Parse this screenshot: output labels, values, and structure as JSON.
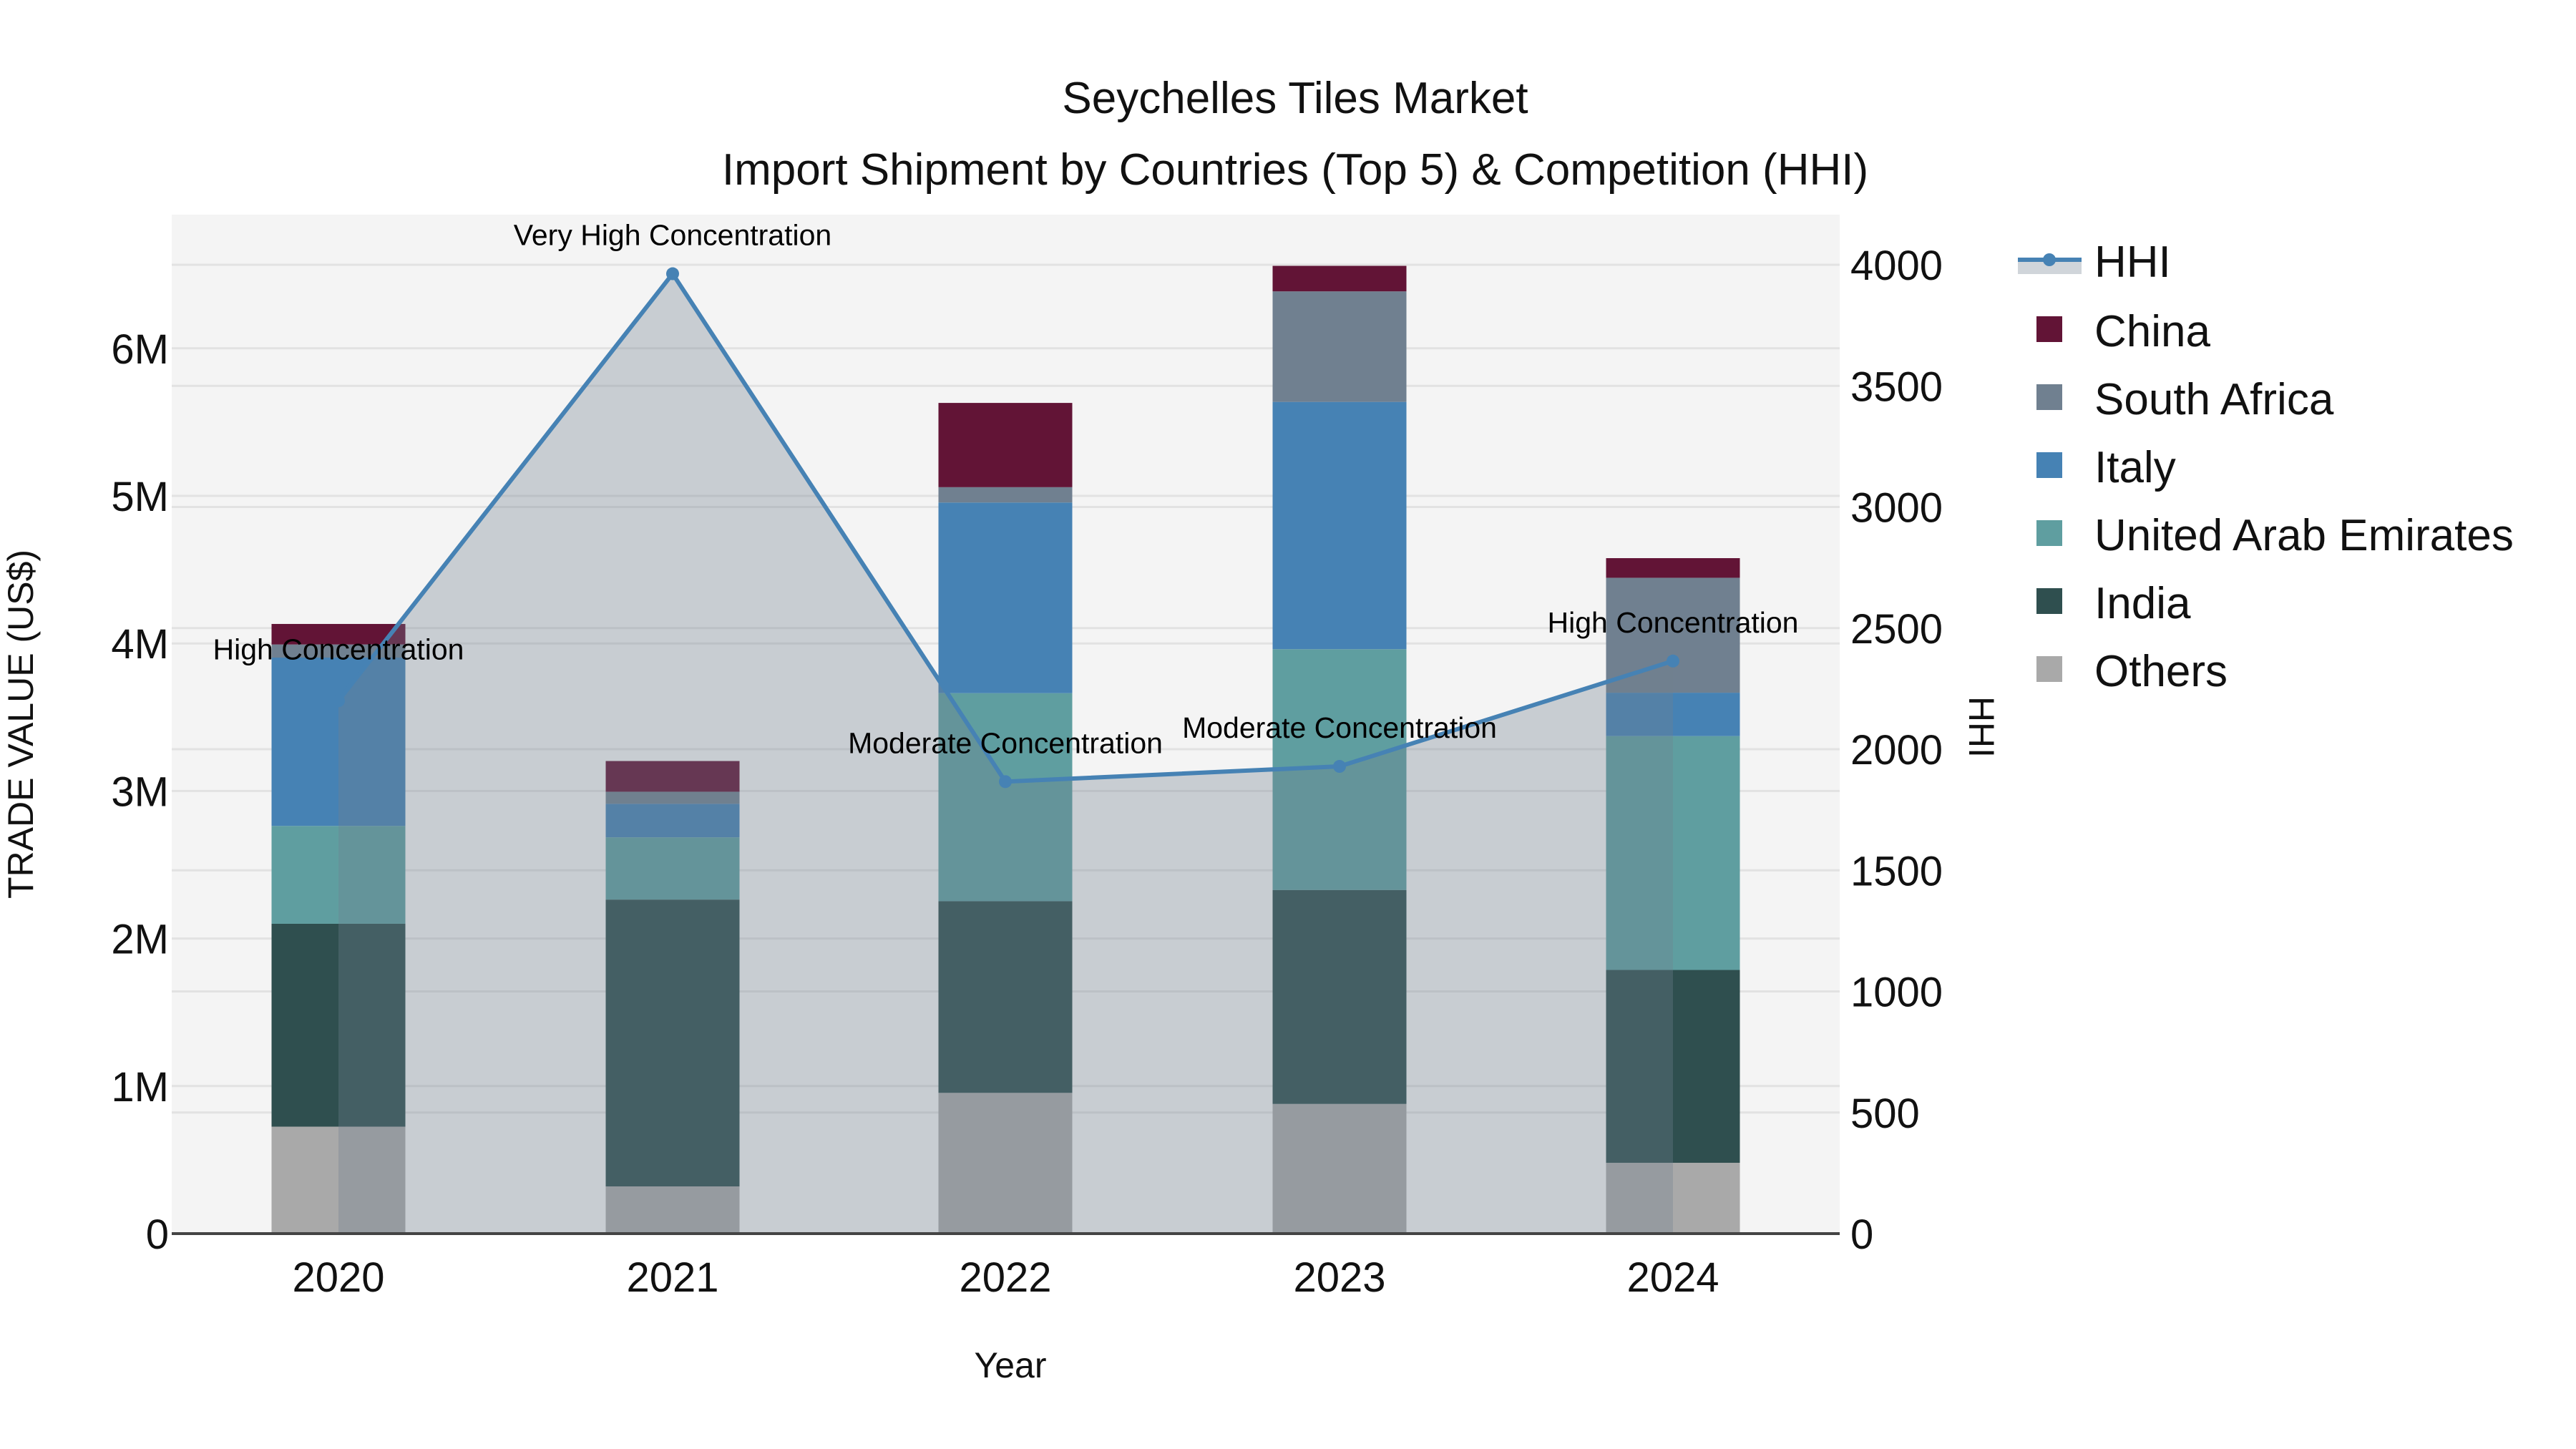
{
  "chart_data": {
    "type": "bar",
    "subtype": "stacked bar with line/area overlay (secondary axis)",
    "title": "Seychelles Tiles Market",
    "subtitle": "Import Shipment by Countries (Top 5) & Competition (HHI)",
    "xlabel": "Year",
    "ylabel": "TRADE VALUE (US$)",
    "y2label": "HHI",
    "categories": [
      "2020",
      "2021",
      "2022",
      "2023",
      "2024"
    ],
    "ylim": [
      0,
      6900000
    ],
    "y_ticks": [
      {
        "value": 0,
        "label": "0"
      },
      {
        "value": 1000000,
        "label": "1M"
      },
      {
        "value": 2000000,
        "label": "2M"
      },
      {
        "value": 3000000,
        "label": "3M"
      },
      {
        "value": 4000000,
        "label": "4M"
      },
      {
        "value": 5000000,
        "label": "5M"
      },
      {
        "value": 6000000,
        "label": "6M"
      }
    ],
    "y2lim": [
      0,
      4200
    ],
    "y2_ticks": [
      {
        "value": 0,
        "label": "0"
      },
      {
        "value": 500,
        "label": "500"
      },
      {
        "value": 1000,
        "label": "1000"
      },
      {
        "value": 1500,
        "label": "1500"
      },
      {
        "value": 2000,
        "label": "2000"
      },
      {
        "value": 2500,
        "label": "2500"
      },
      {
        "value": 3000,
        "label": "3000"
      },
      {
        "value": 3500,
        "label": "3500"
      },
      {
        "value": 4000,
        "label": "4000"
      }
    ],
    "grid": true,
    "legend_position": "right",
    "stack_order_bottom_to_top": [
      "Others",
      "India",
      "United Arab Emirates",
      "Italy",
      "South Africa",
      "China"
    ],
    "series": [
      {
        "name": "Others",
        "color": "#a9a9a9",
        "values": [
          725000,
          320000,
          954000,
          879000,
          480000
        ]
      },
      {
        "name": "India",
        "color": "#2f4f4f",
        "values": [
          1375000,
          1944000,
          1299000,
          1450000,
          1307000
        ]
      },
      {
        "name": "United Arab Emirates",
        "color": "#5f9ea0",
        "values": [
          663000,
          422000,
          1410000,
          1632000,
          1585000
        ]
      },
      {
        "name": "Italy",
        "color": "#4682b4",
        "values": [
          1141000,
          227000,
          1292000,
          1676000,
          294000
        ]
      },
      {
        "name": "South Africa",
        "color": "#708090",
        "values": [
          89000,
          82000,
          104000,
          749000,
          779000
        ]
      },
      {
        "name": "China",
        "color": "#621436",
        "values": [
          139000,
          208000,
          571000,
          173000,
          133000
        ]
      }
    ],
    "hhi": {
      "name": "HHI",
      "axis": "y2",
      "line_color": "#4682b4",
      "fill_color": "#708090",
      "fill_opacity": 0.33,
      "values": [
        2200,
        3963,
        1866,
        1929,
        2364
      ],
      "annotations": [
        "High Concentration",
        "Very High Concentration",
        "Moderate Concentration",
        "Moderate Concentration",
        "High Concentration"
      ]
    }
  },
  "legend": {
    "items": [
      {
        "label": "HHI",
        "kind": "line",
        "color": "#4682b4"
      },
      {
        "label": "China",
        "kind": "box",
        "color": "#621436"
      },
      {
        "label": "South Africa",
        "kind": "box",
        "color": "#708090"
      },
      {
        "label": "Italy",
        "kind": "box",
        "color": "#4682b4"
      },
      {
        "label": "United Arab Emirates",
        "kind": "box",
        "color": "#5f9ea0"
      },
      {
        "label": "India",
        "kind": "box",
        "color": "#2f4f4f"
      },
      {
        "label": "Others",
        "kind": "box",
        "color": "#a9a9a9"
      }
    ]
  },
  "colors": {
    "plot_bg": "#f4f4f4",
    "grid": "#e2e2e2",
    "axis_line": "#444444",
    "page_bg": "#ffffff"
  }
}
